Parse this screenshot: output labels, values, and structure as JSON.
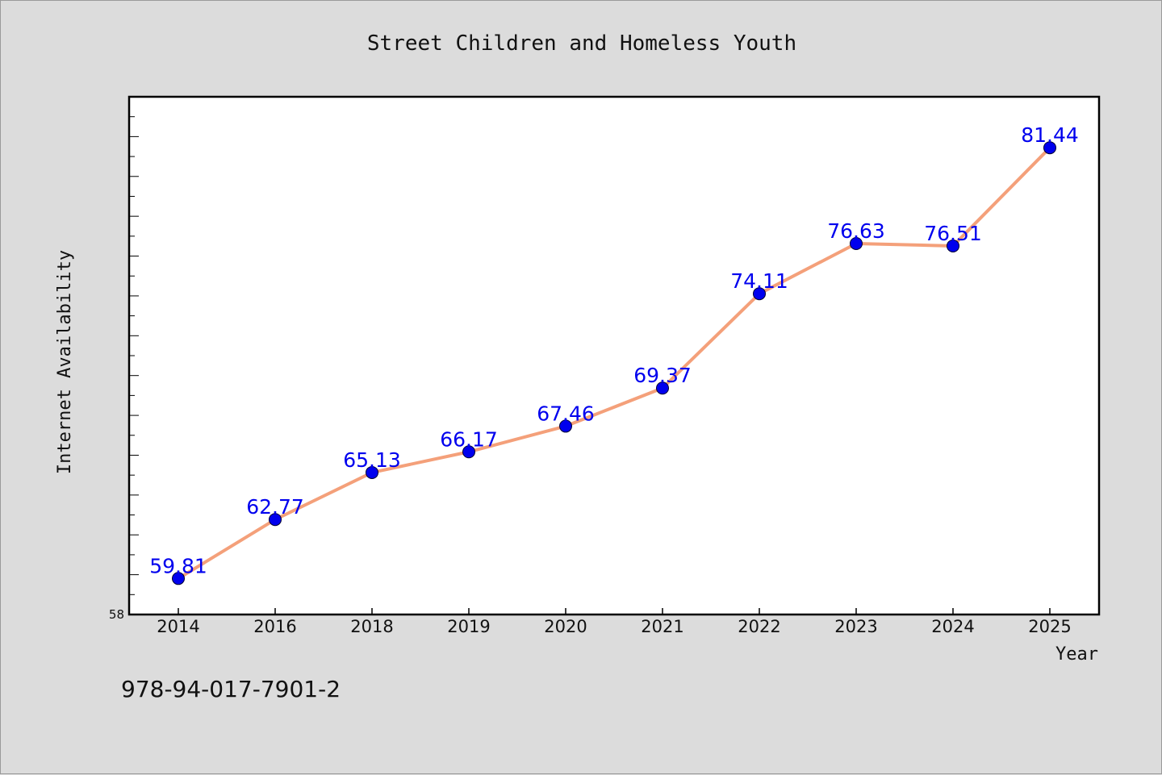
{
  "chart_data": {
    "type": "line",
    "title": "Street Children and Homeless Youth",
    "xlabel": "Year",
    "ylabel": "Internet Availability",
    "categories": [
      "2014",
      "2016",
      "2018",
      "2019",
      "2020",
      "2021",
      "2022",
      "2023",
      "2024",
      "2025"
    ],
    "values": [
      59.81,
      62.77,
      65.13,
      66.17,
      67.46,
      69.37,
      74.11,
      76.63,
      76.51,
      81.44
    ],
    "data_labels": [
      "59.81",
      "62.77",
      "65.13",
      "66.17",
      "67.46",
      "69.37",
      "74.11",
      "76.63",
      "76.51",
      "81.44"
    ],
    "ylim": [
      58,
      84
    ],
    "y_tick_labels": [
      "58"
    ],
    "grid": false,
    "legend": "none",
    "line_color": "#f4a07a",
    "marker_color": "#0000ee",
    "label_color": "#0000ee"
  },
  "footer_code": "978-94-017-7901-2"
}
